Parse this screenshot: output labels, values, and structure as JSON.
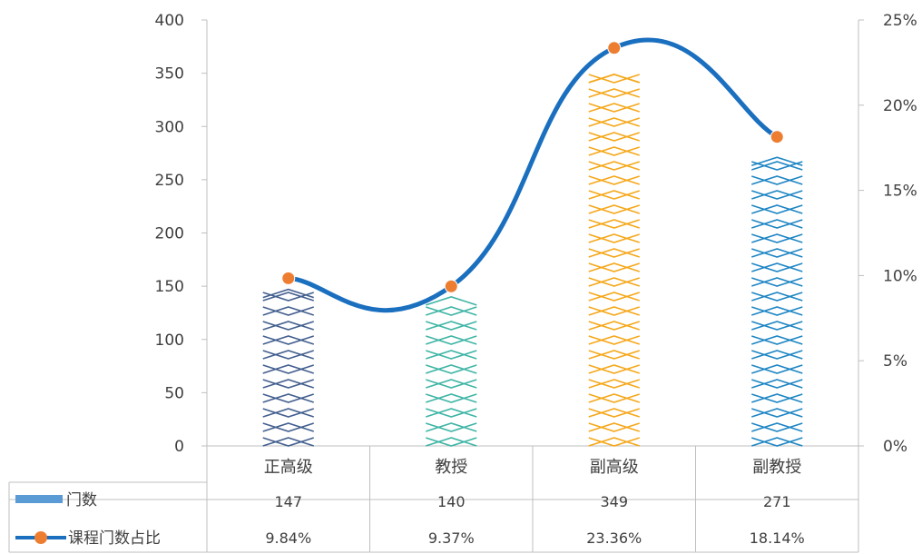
{
  "chart_data": {
    "type": "bar",
    "categories": [
      "正高级",
      "教授",
      "副高级",
      "副教授"
    ],
    "series": [
      {
        "name": "门数",
        "axis": "left",
        "values": [
          147,
          140,
          349,
          271
        ],
        "value_labels": [
          "147",
          "140",
          "349",
          "271"
        ],
        "colors": [
          "#44608f",
          "#3fb5a5",
          "#f5a81c",
          "#1f86c4"
        ],
        "legend_color": "#5b9bd5"
      },
      {
        "name": "课程门数占比",
        "type": "line",
        "axis": "right",
        "values": [
          9.84,
          9.37,
          23.36,
          18.14
        ],
        "value_labels": [
          "9.84%",
          "9.37%",
          "23.36%",
          "18.14%"
        ],
        "line_color": "#1a6fbf",
        "marker_color": "#ed7d31"
      }
    ],
    "y_left": {
      "ylim": [
        0,
        400
      ],
      "ticks": [
        "0",
        "50",
        "100",
        "150",
        "200",
        "250",
        "300",
        "350",
        "400"
      ]
    },
    "y_right": {
      "ylim": [
        0,
        25
      ],
      "ticks": [
        "0%",
        "5%",
        "10%",
        "15%",
        "20%",
        "25%"
      ]
    },
    "data_table": true,
    "grid": false
  }
}
